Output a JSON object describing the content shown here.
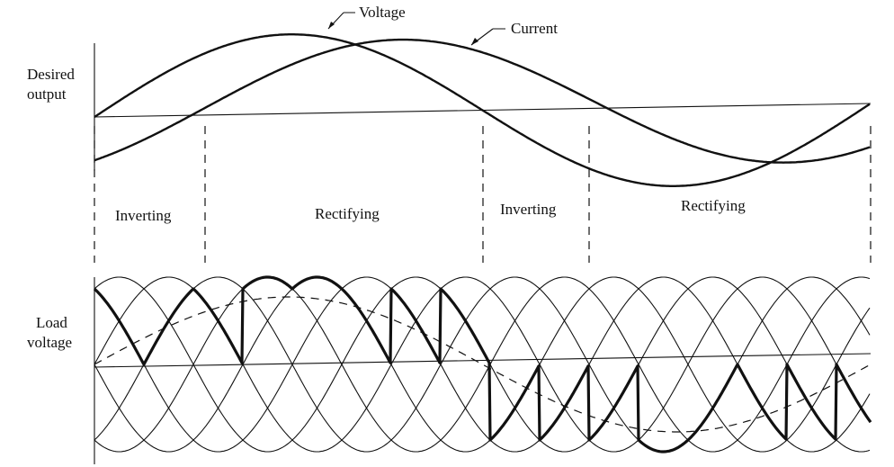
{
  "callouts": {
    "voltage": "Voltage",
    "current": "Current"
  },
  "top_panel": {
    "label_lines": [
      "Desired",
      "output"
    ]
  },
  "regions": [
    "Inverting",
    "Rectifying",
    "Inverting",
    "Rectifying"
  ],
  "bottom_panel": {
    "label_lines": [
      "Load",
      "voltage"
    ]
  }
}
